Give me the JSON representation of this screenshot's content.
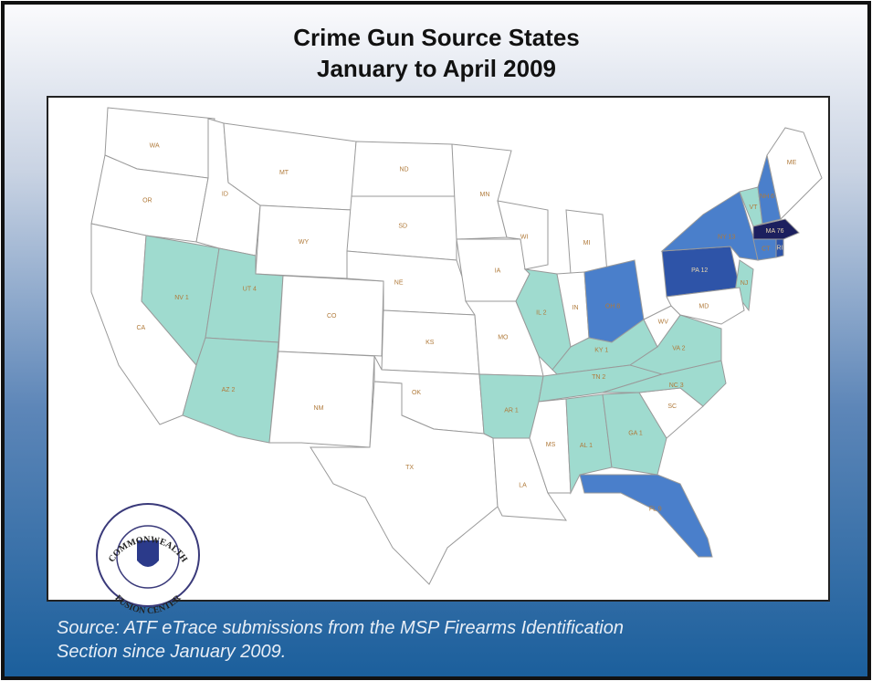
{
  "header": {
    "title": [
      "Crime Gun Source States",
      "January to April 2009"
    ]
  },
  "map": {
    "states": [
      {
        "label": "WA",
        "color": "#ffffff"
      },
      {
        "label": "OR",
        "color": "#ffffff"
      },
      {
        "label": "CA",
        "color": "#ffffff"
      },
      {
        "label": "NV 1",
        "color": "#9fdbcf"
      },
      {
        "label": "ID",
        "color": "#ffffff"
      },
      {
        "label": "MT",
        "color": "#ffffff"
      },
      {
        "label": "WY",
        "color": "#ffffff"
      },
      {
        "label": "UT 4",
        "color": "#9fdbcf"
      },
      {
        "label": "AZ 2",
        "color": "#9fdbcf"
      },
      {
        "label": "CO",
        "color": "#ffffff"
      },
      {
        "label": "NM",
        "color": "#ffffff"
      },
      {
        "label": "ND",
        "color": "#ffffff"
      },
      {
        "label": "SD",
        "color": "#ffffff"
      },
      {
        "label": "NE",
        "color": "#ffffff"
      },
      {
        "label": "KS",
        "color": "#ffffff"
      },
      {
        "label": "OK",
        "color": "#ffffff"
      },
      {
        "label": "TX",
        "color": "#ffffff"
      },
      {
        "label": "MN",
        "color": "#ffffff"
      },
      {
        "label": "IA",
        "color": "#ffffff"
      },
      {
        "label": "MO",
        "color": "#ffffff"
      },
      {
        "label": "AR 1",
        "color": "#9fdbcf"
      },
      {
        "label": "LA",
        "color": "#ffffff"
      },
      {
        "label": "WI",
        "color": "#ffffff"
      },
      {
        "label": "IL 2",
        "color": "#9fdbcf"
      },
      {
        "label": "MI",
        "color": "#ffffff"
      },
      {
        "label": "IN",
        "color": "#ffffff"
      },
      {
        "label": "OH 8",
        "color": "#4a7fcb"
      },
      {
        "label": "KY 1",
        "color": "#9fdbcf"
      },
      {
        "label": "TN 2",
        "color": "#9fdbcf"
      },
      {
        "label": "MS",
        "color": "#ffffff"
      },
      {
        "label": "AL 1",
        "color": "#9fdbcf"
      },
      {
        "label": "GA 1",
        "color": "#9fdbcf"
      },
      {
        "label": "FL 9",
        "color": "#4a7fcb"
      },
      {
        "label": "SC",
        "color": "#ffffff"
      },
      {
        "label": "NC 3",
        "color": "#9fdbcf"
      },
      {
        "label": "VA 2",
        "color": "#9fdbcf"
      },
      {
        "label": "WV",
        "color": "#ffffff"
      },
      {
        "label": "PA 12",
        "color": "#2e54a8"
      },
      {
        "label": "NY 13",
        "color": "#4a7fcb"
      },
      {
        "label": "NJ",
        "color": "#9fdbcf"
      },
      {
        "label": "VT",
        "color": "#9fdbcf"
      },
      {
        "label": "NH 6",
        "color": "#4a7fcb"
      },
      {
        "label": "ME",
        "color": "#ffffff"
      },
      {
        "label": "MA 76",
        "color": "#1c1f5e"
      },
      {
        "label": "CT",
        "color": "#4a7fcb"
      },
      {
        "label": "RI",
        "color": "#2e54a8"
      },
      {
        "label": "MD",
        "color": "#ffffff"
      }
    ]
  },
  "seal": {
    "top": "COMMONWEALTH",
    "bottom": "FUSION CENTER"
  },
  "source": [
    "Source: ATF eTrace submissions from the MSP Firearms Identification",
    "Section since January 2009."
  ]
}
